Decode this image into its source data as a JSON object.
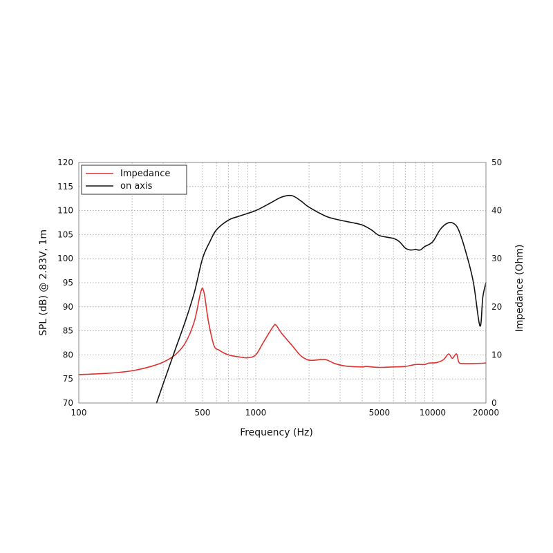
{
  "chart_data": {
    "type": "line",
    "xlabel": "Frequency (Hz)",
    "ylabel_left": "SPL (dB) @ 2.83V, 1m",
    "ylabel_right": "Impedance (Ohm)",
    "x_scale": "log",
    "xlim": [
      100,
      20000
    ],
    "ylim_left": [
      70,
      120
    ],
    "ylim_right": [
      0,
      50
    ],
    "x_tick_labels": [
      100,
      500,
      1000,
      5000,
      10000,
      20000
    ],
    "y_left_ticks": [
      70,
      75,
      80,
      85,
      90,
      95,
      100,
      105,
      110,
      115,
      120
    ],
    "y_right_ticks": [
      0,
      10,
      20,
      30,
      40,
      50
    ],
    "grid": true,
    "legend_position": "top-left",
    "colors": {
      "Impedance": "#e03030",
      "on axis": "#111111"
    },
    "series": [
      {
        "name": "Impedance",
        "axis": "right",
        "points": [
          [
            100,
            5.9
          ],
          [
            150,
            6.2
          ],
          [
            200,
            6.7
          ],
          [
            250,
            7.5
          ],
          [
            300,
            8.5
          ],
          [
            350,
            10.0
          ],
          [
            400,
            12.5
          ],
          [
            450,
            17.0
          ],
          [
            490,
            23.2
          ],
          [
            510,
            23.0
          ],
          [
            540,
            17.0
          ],
          [
            580,
            12.0
          ],
          [
            620,
            11.0
          ],
          [
            700,
            10.0
          ],
          [
            800,
            9.6
          ],
          [
            900,
            9.4
          ],
          [
            1000,
            10.0
          ],
          [
            1100,
            12.5
          ],
          [
            1250,
            15.8
          ],
          [
            1300,
            16.2
          ],
          [
            1400,
            14.5
          ],
          [
            1600,
            12.0
          ],
          [
            1800,
            9.8
          ],
          [
            2000,
            8.9
          ],
          [
            2300,
            9.0
          ],
          [
            2500,
            9.0
          ],
          [
            2800,
            8.2
          ],
          [
            3200,
            7.7
          ],
          [
            4000,
            7.5
          ],
          [
            4200,
            7.6
          ],
          [
            5000,
            7.4
          ],
          [
            6000,
            7.5
          ],
          [
            7000,
            7.6
          ],
          [
            8000,
            8.0
          ],
          [
            9000,
            8.0
          ],
          [
            9500,
            8.3
          ],
          [
            10500,
            8.4
          ],
          [
            11500,
            9.0
          ],
          [
            12300,
            10.2
          ],
          [
            12900,
            9.3
          ],
          [
            13400,
            10.0
          ],
          [
            13700,
            10.1
          ],
          [
            14100,
            8.4
          ],
          [
            15000,
            8.2
          ],
          [
            17000,
            8.2
          ],
          [
            20000,
            8.3
          ]
        ]
      },
      {
        "name": "on axis",
        "axis": "left",
        "points": [
          [
            275,
            70.0
          ],
          [
            300,
            74.0
          ],
          [
            350,
            81.0
          ],
          [
            400,
            87.0
          ],
          [
            450,
            93.0
          ],
          [
            500,
            100.0
          ],
          [
            550,
            103.5
          ],
          [
            600,
            106.0
          ],
          [
            700,
            108.0
          ],
          [
            800,
            108.8
          ],
          [
            1000,
            110.0
          ],
          [
            1200,
            111.5
          ],
          [
            1400,
            112.8
          ],
          [
            1600,
            113.1
          ],
          [
            1800,
            112.0
          ],
          [
            2000,
            110.7
          ],
          [
            2500,
            108.8
          ],
          [
            3000,
            108.0
          ],
          [
            3500,
            107.5
          ],
          [
            4000,
            107.0
          ],
          [
            4500,
            106.0
          ],
          [
            5000,
            104.8
          ],
          [
            6000,
            104.2
          ],
          [
            6500,
            103.5
          ],
          [
            7000,
            102.2
          ],
          [
            7500,
            101.8
          ],
          [
            8000,
            101.9
          ],
          [
            8500,
            101.8
          ],
          [
            9000,
            102.5
          ],
          [
            10000,
            103.5
          ],
          [
            11000,
            106.0
          ],
          [
            12000,
            107.3
          ],
          [
            13000,
            107.4
          ],
          [
            14000,
            106.0
          ],
          [
            15500,
            101.0
          ],
          [
            17000,
            95.0
          ],
          [
            18500,
            86.0
          ],
          [
            19200,
            92.0
          ],
          [
            20000,
            95.0
          ]
        ]
      }
    ]
  }
}
